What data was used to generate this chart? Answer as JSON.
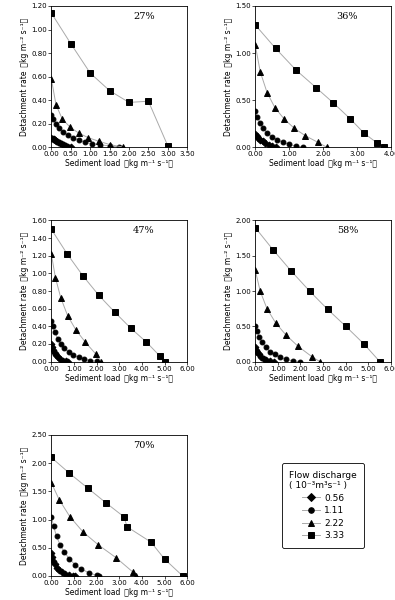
{
  "panels": [
    {
      "label": "27%",
      "xlim": [
        0,
        3.5
      ],
      "xticks": [
        0.0,
        0.5,
        1.0,
        1.5,
        2.0,
        2.5,
        3.0,
        3.5
      ],
      "ylim": [
        0,
        1.2
      ],
      "yticks": [
        0.0,
        0.2,
        0.4,
        0.6,
        0.8,
        1.0,
        1.2
      ],
      "series": [
        {
          "x": [
            0.0,
            0.03,
            0.06,
            0.09,
            0.13,
            0.18,
            0.22,
            0.27,
            0.32,
            0.38,
            0.44,
            0.5
          ],
          "y": [
            0.08,
            0.07,
            0.065,
            0.06,
            0.05,
            0.04,
            0.035,
            0.025,
            0.015,
            0.008,
            0.003,
            0.0
          ]
        },
        {
          "x": [
            0.0,
            0.05,
            0.12,
            0.2,
            0.3,
            0.42,
            0.55,
            0.7,
            0.87,
            1.05,
            1.25,
            1.5,
            1.75
          ],
          "y": [
            0.27,
            0.24,
            0.2,
            0.16,
            0.13,
            0.1,
            0.08,
            0.06,
            0.04,
            0.03,
            0.02,
            0.01,
            0.0
          ]
        },
        {
          "x": [
            0.0,
            0.12,
            0.28,
            0.48,
            0.7,
            0.95,
            1.22,
            1.52,
            1.85
          ],
          "y": [
            0.58,
            0.36,
            0.24,
            0.17,
            0.12,
            0.08,
            0.05,
            0.02,
            0.0
          ]
        },
        {
          "x": [
            0.0,
            0.5,
            1.0,
            1.5,
            2.0,
            2.5,
            3.0
          ],
          "y": [
            1.14,
            0.88,
            0.63,
            0.48,
            0.38,
            0.39,
            0.01
          ]
        }
      ]
    },
    {
      "label": "36%",
      "xlim": [
        0,
        4.0
      ],
      "xticks": [
        0.0,
        1.0,
        2.0,
        3.0,
        4.0
      ],
      "ylim": [
        0,
        1.5
      ],
      "yticks": [
        0.0,
        0.5,
        1.0,
        1.5
      ],
      "series": [
        {
          "x": [
            0.0,
            0.04,
            0.09,
            0.15,
            0.22,
            0.3,
            0.4,
            0.5,
            0.6
          ],
          "y": [
            0.14,
            0.12,
            0.1,
            0.08,
            0.06,
            0.04,
            0.02,
            0.01,
            0.0
          ]
        },
        {
          "x": [
            0.0,
            0.06,
            0.14,
            0.24,
            0.36,
            0.5,
            0.65,
            0.82,
            1.0,
            1.2,
            1.42
          ],
          "y": [
            0.38,
            0.32,
            0.26,
            0.2,
            0.15,
            0.11,
            0.08,
            0.05,
            0.03,
            0.01,
            0.0
          ]
        },
        {
          "x": [
            0.0,
            0.15,
            0.35,
            0.58,
            0.85,
            1.15,
            1.48,
            1.85,
            2.1
          ],
          "y": [
            1.09,
            0.8,
            0.58,
            0.42,
            0.3,
            0.2,
            0.12,
            0.05,
            0.0
          ]
        },
        {
          "x": [
            0.0,
            0.6,
            1.2,
            1.8,
            2.3,
            2.8,
            3.2,
            3.6,
            3.8
          ],
          "y": [
            1.3,
            1.05,
            0.82,
            0.63,
            0.47,
            0.3,
            0.15,
            0.04,
            0.0
          ]
        }
      ]
    },
    {
      "label": "47%",
      "xlim": [
        0,
        6.0
      ],
      "xticks": [
        0.0,
        1.0,
        2.0,
        3.0,
        4.0,
        5.0,
        6.0
      ],
      "ylim": [
        0,
        1.6
      ],
      "yticks": [
        0.0,
        0.2,
        0.4,
        0.6,
        0.8,
        1.0,
        1.2,
        1.4,
        1.6
      ],
      "series": [
        {
          "x": [
            0.0,
            0.04,
            0.09,
            0.15,
            0.22,
            0.3,
            0.4,
            0.52,
            0.65,
            0.75
          ],
          "y": [
            0.2,
            0.17,
            0.13,
            0.1,
            0.07,
            0.05,
            0.03,
            0.01,
            0.005,
            0.0
          ]
        },
        {
          "x": [
            0.0,
            0.07,
            0.16,
            0.28,
            0.42,
            0.58,
            0.76,
            0.97,
            1.2,
            1.45,
            1.72,
            2.0,
            2.1
          ],
          "y": [
            0.46,
            0.4,
            0.33,
            0.26,
            0.2,
            0.15,
            0.11,
            0.07,
            0.05,
            0.03,
            0.01,
            0.005,
            0.0
          ]
        },
        {
          "x": [
            0.0,
            0.18,
            0.42,
            0.72,
            1.08,
            1.5,
            1.98,
            2.2
          ],
          "y": [
            1.22,
            0.95,
            0.72,
            0.52,
            0.36,
            0.22,
            0.08,
            0.0
          ]
        },
        {
          "x": [
            0.0,
            0.7,
            1.4,
            2.1,
            2.8,
            3.5,
            4.2,
            4.8,
            5.0
          ],
          "y": [
            1.5,
            1.22,
            0.97,
            0.75,
            0.56,
            0.38,
            0.22,
            0.06,
            0.0
          ]
        }
      ]
    },
    {
      "label": "58%",
      "xlim": [
        0,
        6.0
      ],
      "xticks": [
        0.0,
        1.0,
        2.0,
        3.0,
        4.0,
        5.0,
        6.0
      ],
      "ylim": [
        0,
        2.0
      ],
      "yticks": [
        0.0,
        0.5,
        1.0,
        1.5,
        2.0
      ],
      "series": [
        {
          "x": [
            0.0,
            0.04,
            0.1,
            0.17,
            0.26,
            0.37,
            0.5,
            0.65,
            0.82
          ],
          "y": [
            0.2,
            0.17,
            0.13,
            0.1,
            0.07,
            0.04,
            0.02,
            0.01,
            0.0
          ]
        },
        {
          "x": [
            0.0,
            0.08,
            0.18,
            0.31,
            0.47,
            0.65,
            0.86,
            1.1,
            1.37,
            1.67,
            2.0
          ],
          "y": [
            0.5,
            0.43,
            0.35,
            0.27,
            0.2,
            0.14,
            0.1,
            0.06,
            0.03,
            0.01,
            0.0
          ]
        },
        {
          "x": [
            0.0,
            0.22,
            0.52,
            0.9,
            1.35,
            1.88,
            2.5,
            2.85
          ],
          "y": [
            1.3,
            1.0,
            0.75,
            0.55,
            0.38,
            0.22,
            0.07,
            0.0
          ]
        },
        {
          "x": [
            0.0,
            0.8,
            1.6,
            2.4,
            3.2,
            4.0,
            4.8,
            5.5
          ],
          "y": [
            1.9,
            1.58,
            1.28,
            1.0,
            0.74,
            0.5,
            0.25,
            0.0
          ]
        }
      ]
    },
    {
      "label": "70%",
      "xlim": [
        0,
        6.0
      ],
      "xticks": [
        0.0,
        1.0,
        2.0,
        3.0,
        4.0,
        5.0,
        6.0
      ],
      "ylim": [
        0,
        2.5
      ],
      "yticks": [
        0.0,
        0.5,
        1.0,
        1.5,
        2.0,
        2.5
      ],
      "series": [
        {
          "x": [
            0.0,
            0.04,
            0.09,
            0.16,
            0.24,
            0.34,
            0.46,
            0.6,
            0.76,
            0.95,
            1.05
          ],
          "y": [
            0.4,
            0.34,
            0.27,
            0.21,
            0.15,
            0.1,
            0.07,
            0.04,
            0.02,
            0.005,
            0.0
          ]
        },
        {
          "x": [
            0.0,
            0.1,
            0.23,
            0.39,
            0.58,
            0.8,
            1.05,
            1.33,
            1.65,
            2.0,
            2.1
          ],
          "y": [
            1.05,
            0.88,
            0.7,
            0.55,
            0.42,
            0.3,
            0.2,
            0.12,
            0.06,
            0.01,
            0.0
          ]
        },
        {
          "x": [
            0.0,
            0.35,
            0.82,
            1.4,
            2.08,
            2.87,
            3.6,
            3.75
          ],
          "y": [
            1.65,
            1.35,
            1.05,
            0.78,
            0.55,
            0.32,
            0.07,
            0.0
          ]
        },
        {
          "x": [
            0.0,
            0.8,
            1.6,
            2.4,
            3.2,
            3.35,
            4.4,
            5.0,
            5.8
          ],
          "y": [
            2.1,
            1.82,
            1.56,
            1.3,
            1.05,
            0.87,
            0.6,
            0.3,
            0.0
          ]
        }
      ]
    }
  ],
  "series_styles": [
    {
      "marker": "D",
      "ms": 3.5,
      "mfc": "black",
      "mec": "black"
    },
    {
      "marker": "o",
      "ms": 3.5,
      "mfc": "black",
      "mec": "black"
    },
    {
      "marker": "^",
      "ms": 4.0,
      "mfc": "black",
      "mec": "black"
    },
    {
      "marker": "s",
      "ms": 4.0,
      "mfc": "black",
      "mec": "black"
    }
  ],
  "line_color": "#aaaaaa",
  "legend_labels": [
    "0.56",
    "1.11",
    "2.22",
    "3.33"
  ],
  "legend_title_line1": "Flow discharge",
  "legend_title_line2": "( 10⁻³m³s⁻¹ )"
}
